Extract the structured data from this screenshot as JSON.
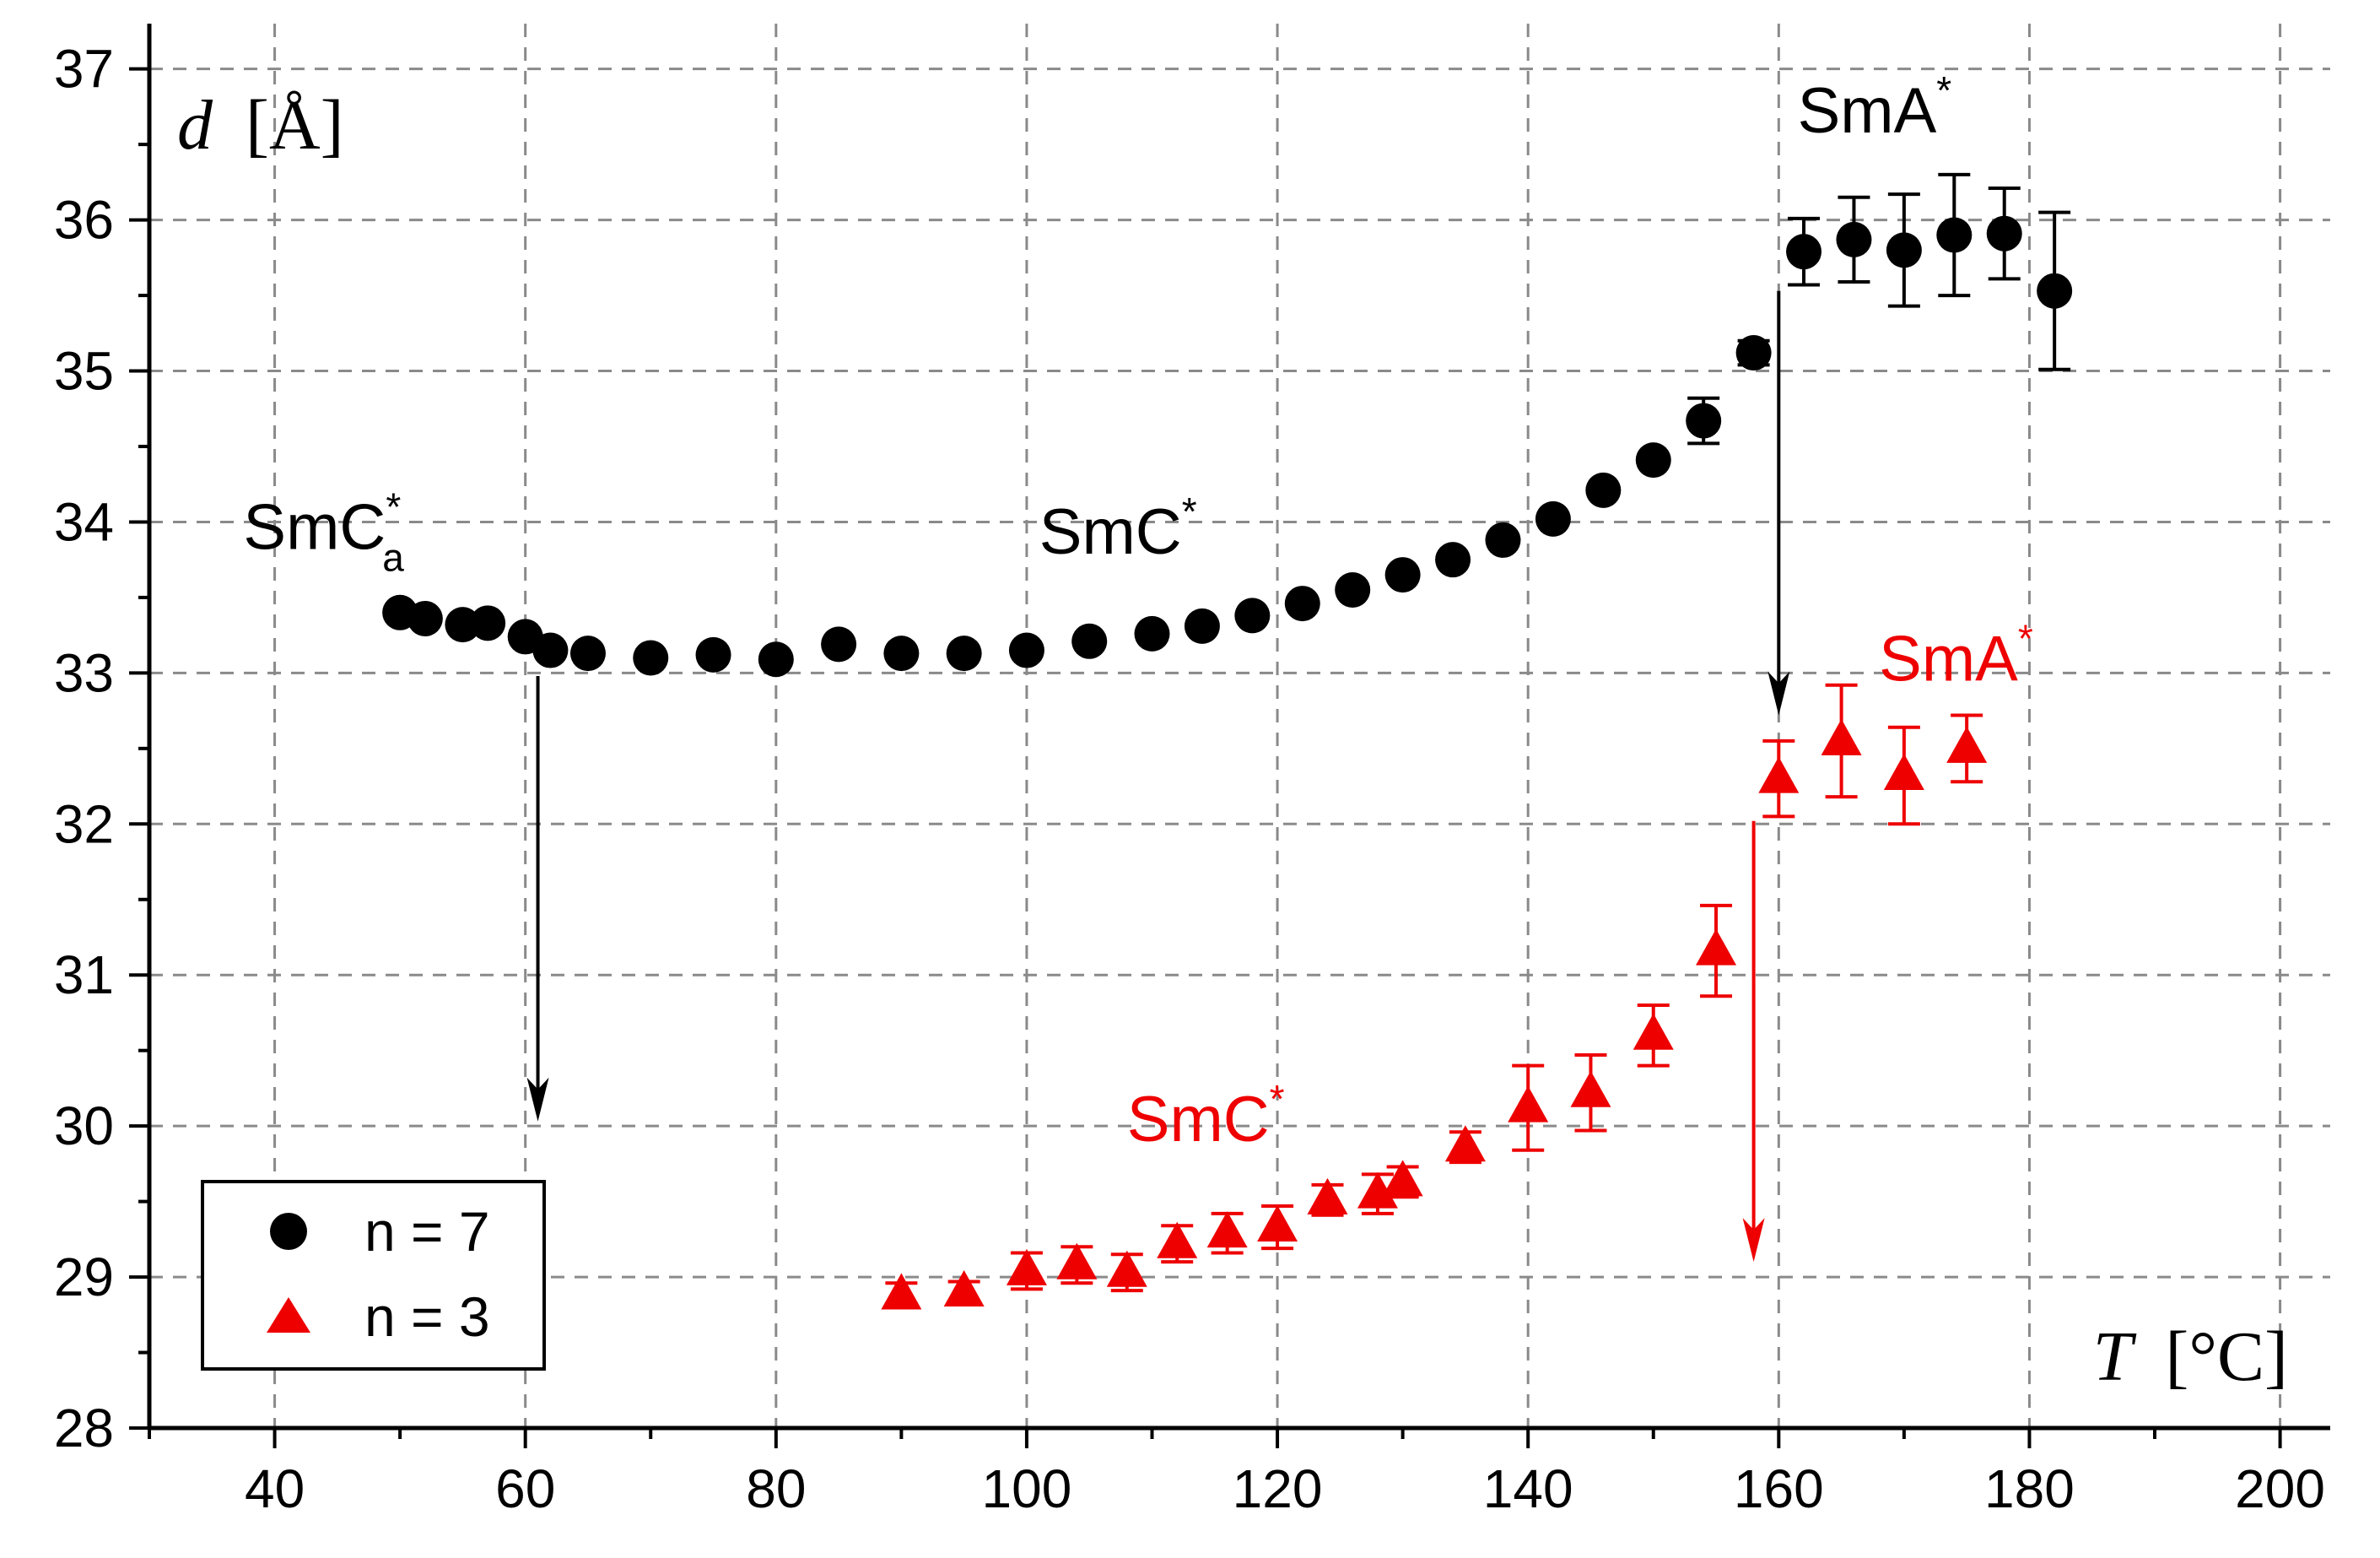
{
  "chart_data": {
    "type": "scatter",
    "title": "",
    "xlabel_var": "T",
    "xlabel_unit": "[°C]",
    "ylabel_var": "d",
    "ylabel_unit": "[Å]",
    "xlim": [
      30,
      204
    ],
    "ylim": [
      28,
      37.3
    ],
    "xticks": [
      40,
      60,
      80,
      100,
      120,
      140,
      160,
      180,
      200
    ],
    "yticks": [
      28,
      29,
      30,
      31,
      32,
      33,
      34,
      35,
      36,
      37
    ],
    "grid": true,
    "legend_position": "bottom-left",
    "series": [
      {
        "name": "n = 7",
        "marker": "circle",
        "color": "#000000",
        "x": [
          50,
          52,
          55,
          57,
          60,
          62,
          65,
          70,
          75,
          80,
          85,
          90,
          95,
          100,
          105,
          110,
          114,
          118,
          122,
          126,
          130,
          134,
          138,
          142,
          146,
          150,
          154,
          158,
          162,
          166,
          170,
          174,
          178,
          182
        ],
        "y": [
          33.4,
          33.36,
          33.32,
          33.33,
          33.24,
          33.15,
          33.13,
          33.1,
          33.12,
          33.09,
          33.19,
          33.13,
          33.13,
          33.15,
          33.21,
          33.26,
          33.31,
          33.38,
          33.46,
          33.55,
          33.65,
          33.75,
          33.88,
          34.02,
          34.21,
          34.41,
          34.67,
          35.12,
          35.79,
          35.87,
          35.8,
          35.9,
          35.91,
          35.53
        ],
        "err": [
          0,
          0,
          0,
          0,
          0,
          0,
          0,
          0,
          0,
          0,
          0,
          0,
          0,
          0,
          0,
          0,
          0,
          0,
          0,
          0,
          0,
          0,
          0,
          0,
          0,
          0,
          0.15,
          0.08,
          0.22,
          0.28,
          0.37,
          0.4,
          0.3,
          0.52
        ]
      },
      {
        "name": "n = 3",
        "marker": "triangle",
        "color": "#ee0000",
        "x": [
          90,
          95,
          100,
          104,
          108,
          112,
          116,
          120,
          124,
          128,
          130,
          135,
          140,
          145,
          150,
          155,
          160,
          165,
          170,
          175
        ],
        "y": [
          28.88,
          28.9,
          29.04,
          29.08,
          29.03,
          29.22,
          29.29,
          29.33,
          29.51,
          29.55,
          29.63,
          29.86,
          30.12,
          30.22,
          30.6,
          31.16,
          32.3,
          32.55,
          32.32,
          32.5
        ],
        "err": [
          0.08,
          0.07,
          0.12,
          0.12,
          0.12,
          0.12,
          0.13,
          0.14,
          0.1,
          0.13,
          0.1,
          0.1,
          0.28,
          0.25,
          0.2,
          0.3,
          0.25,
          0.37,
          0.32,
          0.22
        ]
      }
    ],
    "phase_labels": [
      {
        "text": "SmC",
        "sup": "*",
        "sub": "a",
        "x": 37.5,
        "y": 33.82,
        "color": "#000000"
      },
      {
        "text": "SmC",
        "sup": "*",
        "sub": "",
        "x": 101,
        "y": 33.79,
        "color": "#000000"
      },
      {
        "text": "SmA",
        "sup": "*",
        "sub": "",
        "x": 161.5,
        "y": 36.58,
        "color": "#000000"
      },
      {
        "text": "SmA",
        "sup": "*",
        "sub": "",
        "x": 168,
        "y": 32.95,
        "color": "#ee0000"
      },
      {
        "text": "SmC",
        "sup": "*",
        "sub": "",
        "x": 108,
        "y": 29.9,
        "color": "#ee0000"
      }
    ],
    "arrows": [
      {
        "x1": 61,
        "y1": 32.98,
        "x2": 61,
        "y2": 30.03,
        "color": "#000000"
      },
      {
        "x1": 160,
        "y1": 35.53,
        "x2": 160,
        "y2": 32.72,
        "color": "#000000"
      },
      {
        "x1": 158,
        "y1": 32.02,
        "x2": 158,
        "y2": 29.1,
        "color": "#ee0000"
      }
    ]
  }
}
